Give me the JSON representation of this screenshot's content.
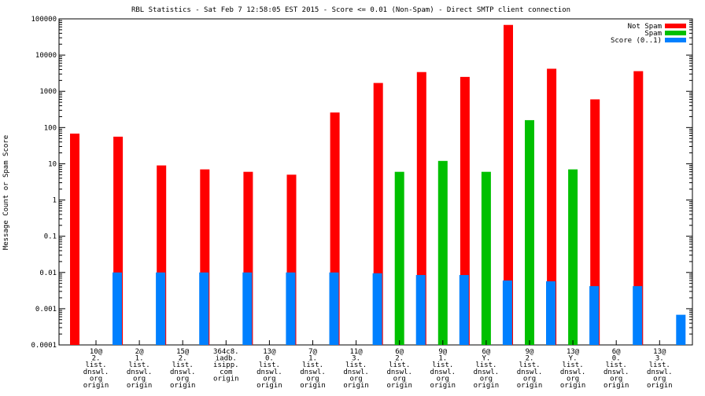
{
  "chart_data": {
    "type": "bar",
    "title": "RBL Statistics - Sat Feb  7 12:58:05 EST 2015 - Score <= 0.01 (Non-Spam) - Direct SMTP client connection",
    "ylabel": "Message Count or Spam Score",
    "xlabel": "",
    "yscale": "log",
    "ylim": [
      0.0001,
      100000
    ],
    "yticks": [
      "0.0001",
      "0.001",
      "0.01",
      "0.1",
      "1",
      "10",
      "100",
      "1000",
      "10000",
      "100000"
    ],
    "grid": false,
    "legend_position": "top-right",
    "categories": [
      [
        "10@",
        "2.",
        "list.",
        "dnswl.",
        "org",
        "origin"
      ],
      [
        "2@",
        "1.",
        "list.",
        "dnswl.",
        "org",
        "origin"
      ],
      [
        "15@",
        "2.",
        "list.",
        "dnswl.",
        "org",
        "origin"
      ],
      [
        "364c8.",
        "iadb.",
        "isipp.",
        "com",
        "origin"
      ],
      [
        "13@",
        "0.",
        "list.",
        "dnswl.",
        "org",
        "origin"
      ],
      [
        "7@",
        "1.",
        "list.",
        "dnswl.",
        "org",
        "origin"
      ],
      [
        "11@",
        "3.",
        "list.",
        "dnswl.",
        "org",
        "origin"
      ],
      [
        "6@",
        "2.",
        "list.",
        "dnswl.",
        "org",
        "origin"
      ],
      [
        "9@",
        "1.",
        "list.",
        "dnswl.",
        "org",
        "origin"
      ],
      [
        "6@",
        "Y.",
        "list.",
        "dnswl.",
        "org",
        "origin"
      ],
      [
        "9@",
        "2.",
        "list.",
        "dnswl.",
        "org",
        "origin"
      ],
      [
        "13@",
        "Y.",
        "list.",
        "dnswl.",
        "org",
        "origin"
      ],
      [
        "6@",
        "0.",
        "list.",
        "dnswl.",
        "org",
        "origin"
      ],
      [
        "13@",
        "3.",
        "list.",
        "dnswl.",
        "org",
        "origin"
      ]
    ],
    "series": [
      {
        "name": "Not Spam",
        "color": "#ff0000",
        "values": [
          68,
          56,
          9,
          7,
          6,
          5,
          260,
          1700,
          3400,
          2500,
          68000,
          4200,
          600,
          3600
        ]
      },
      {
        "name": "Spam",
        "color": "#00c000",
        "values": [
          null,
          null,
          null,
          null,
          null,
          null,
          null,
          6,
          12,
          6,
          160,
          7,
          null,
          null
        ]
      },
      {
        "name": "Score (0..1)",
        "color": "#0080ff",
        "values": [
          0.01,
          0.01,
          0.01,
          0.01,
          0.01,
          0.01,
          0.0095,
          0.0085,
          0.0085,
          0.006,
          0.0057,
          0.0042,
          0.0042,
          0.00068
        ]
      }
    ]
  }
}
